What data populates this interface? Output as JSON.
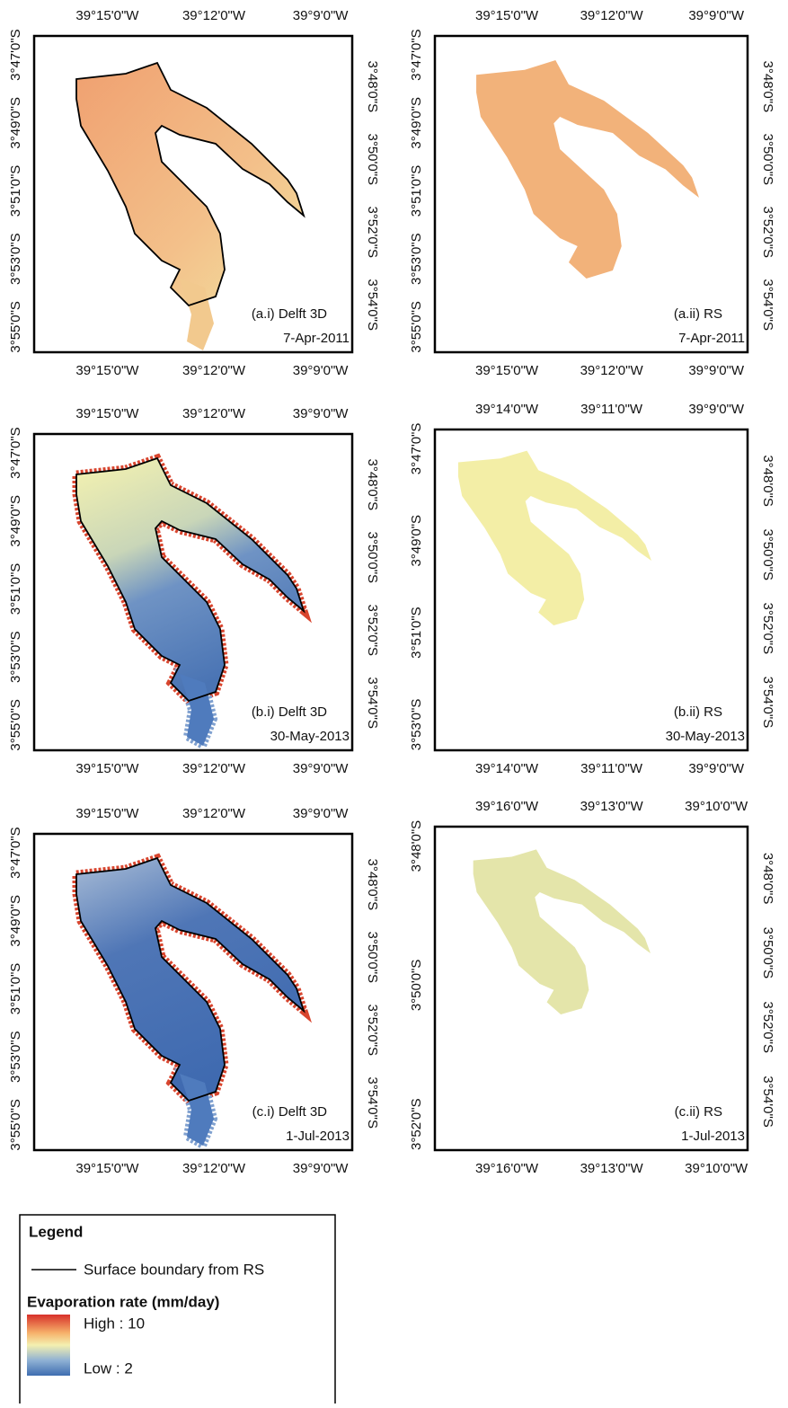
{
  "panels": [
    {
      "label": "(a.i) Delft 3D",
      "date": "7-Apr-2011",
      "top_ticks": [
        "39°15'0\"W",
        "39°12'0\"W",
        "39°9'0\"W"
      ],
      "bottom_ticks": [
        "39°15'0\"W",
        "39°12'0\"W",
        "39°9'0\"W"
      ],
      "left_ticks": [
        "3°47'0\"S",
        "3°49'0\"S",
        "3°51'0\"S",
        "3°53'0\"S",
        "3°55'0\"S"
      ],
      "right_ticks": [
        "3°48'0\"S",
        "3°50'0\"S",
        "3°52'0\"S",
        "3°54'0\"S"
      ]
    },
    {
      "label": "(a.ii) RS",
      "date": "7-Apr-2011",
      "top_ticks": [
        "39°15'0\"W",
        "39°12'0\"W",
        "39°9'0\"W"
      ],
      "bottom_ticks": [
        "39°15'0\"W",
        "39°12'0\"W",
        "39°9'0\"W"
      ],
      "left_ticks": [
        "3°47'0\"S",
        "3°49'0\"S",
        "3°51'0\"S",
        "3°53'0\"S",
        "3°55'0\"S"
      ],
      "right_ticks": [
        "3°48'0\"S",
        "3°50'0\"S",
        "3°52'0\"S",
        "3°54'0\"S"
      ]
    },
    {
      "label": "(b.i) Delft 3D",
      "date": "30-May-2013",
      "top_ticks": [
        "39°15'0\"W",
        "39°12'0\"W",
        "39°9'0\"W"
      ],
      "bottom_ticks": [
        "39°15'0\"W",
        "39°12'0\"W",
        "39°9'0\"W"
      ],
      "left_ticks": [
        "3°47'0\"S",
        "3°49'0\"S",
        "3°51'0\"S",
        "3°53'0\"S",
        "3°55'0\"S"
      ],
      "right_ticks": [
        "3°48'0\"S",
        "3°50'0\"S",
        "3°52'0\"S",
        "3°54'0\"S"
      ]
    },
    {
      "label": "(b.ii) RS",
      "date": "30-May-2013",
      "top_ticks": [
        "39°14'0\"W",
        "39°11'0\"W",
        "39°9'0\"W"
      ],
      "bottom_ticks": [
        "39°14'0\"W",
        "39°11'0\"W",
        "39°9'0\"W"
      ],
      "left_ticks": [
        "3°47'0\"S",
        "3°49'0\"S",
        "3°51'0\"S",
        "3°53'0\"S"
      ],
      "right_ticks": [
        "3°48'0\"S",
        "3°50'0\"S",
        "3°52'0\"S",
        "3°54'0\"S"
      ]
    },
    {
      "label": "(c.i) Delft 3D",
      "date": "1-Jul-2013",
      "top_ticks": [
        "39°15'0\"W",
        "39°12'0\"W",
        "39°9'0\"W"
      ],
      "bottom_ticks": [
        "39°15'0\"W",
        "39°12'0\"W",
        "39°9'0\"W"
      ],
      "left_ticks": [
        "3°47'0\"S",
        "3°49'0\"S",
        "3°51'0\"S",
        "3°53'0\"S",
        "3°55'0\"S"
      ],
      "right_ticks": [
        "3°48'0\"S",
        "3°50'0\"S",
        "3°52'0\"S",
        "3°54'0\"S"
      ]
    },
    {
      "label": "(c.ii) RS",
      "date": "1-Jul-2013",
      "top_ticks": [
        "39°16'0\"W",
        "39°13'0\"W",
        "39°10'0\"W"
      ],
      "bottom_ticks": [
        "39°16'0\"W",
        "39°13'0\"W",
        "39°10'0\"W"
      ],
      "left_ticks": [
        "3°48'0\"S",
        "3°50'0\"S",
        "3°52'0\"S"
      ],
      "right_ticks": [
        "3°48'0\"S",
        "3°50'0\"S",
        "3°52'0\"S",
        "3°54'0\"S"
      ]
    }
  ],
  "legend": {
    "title": "Legend",
    "line_label": "Surface boundary from RS",
    "ramp_title": "Evaporation rate (mm/day)",
    "high": "High : 10",
    "low": "Low : 2"
  }
}
